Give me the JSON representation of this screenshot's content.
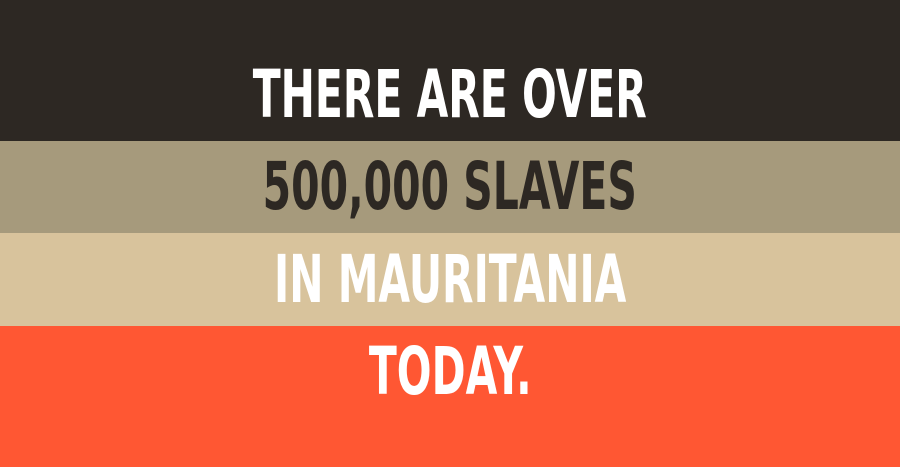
{
  "lines": [
    "THERE ARE OVER",
    "500,000 SLAVES",
    "IN MAURITANIA",
    "TODAY."
  ],
  "colors": {
    "band_1": "#2d2823",
    "band_2": "#a69a7c",
    "band_3": "#d8c39c",
    "band_4": "#ff5733",
    "text_light": "#ffffff",
    "text_dark": "#2d2823"
  }
}
